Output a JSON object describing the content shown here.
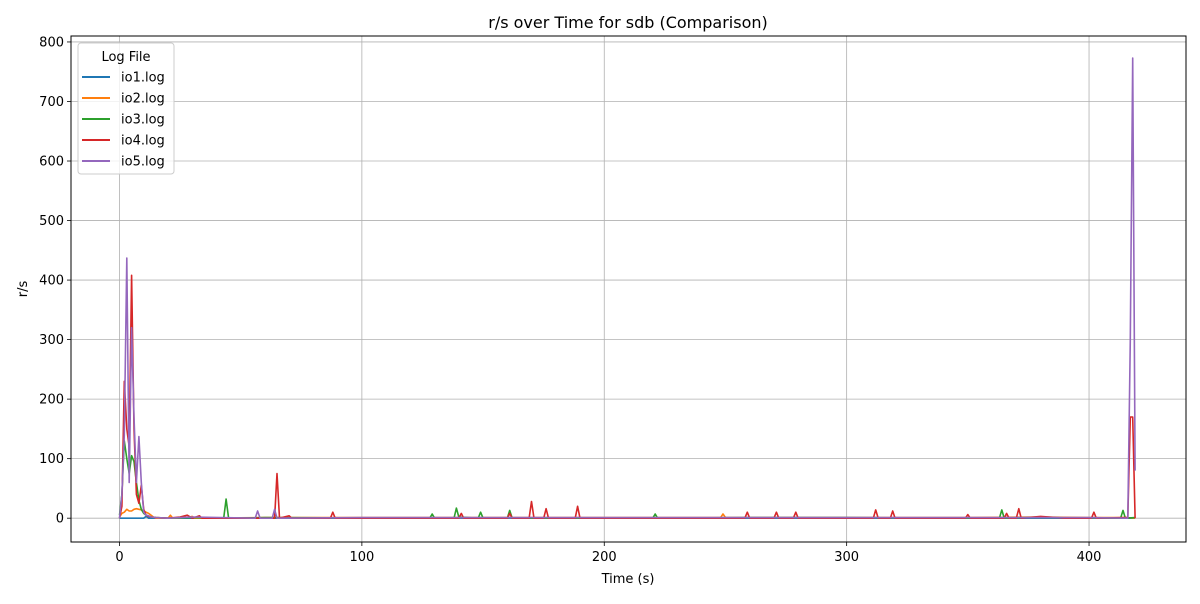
{
  "chart_data": {
    "type": "line",
    "title": "r/s over Time for sdb (Comparison)",
    "xlabel": "Time (s)",
    "ylabel": "r/s",
    "xlim": [
      -20,
      440
    ],
    "ylim": [
      -40,
      810
    ],
    "xticks": [
      0,
      100,
      200,
      300,
      400
    ],
    "yticks": [
      0,
      100,
      200,
      300,
      400,
      500,
      600,
      700,
      800
    ],
    "grid": true,
    "legend": {
      "title": "Log File",
      "placement": "top-left"
    },
    "series": [
      {
        "name": "io1.log",
        "color": "#1f77b4",
        "points": [
          [
            0,
            0
          ],
          [
            5,
            0
          ],
          [
            10,
            0
          ],
          [
            11,
            3
          ],
          [
            12,
            0
          ],
          [
            20,
            0
          ],
          [
            100,
            0
          ],
          [
            200,
            0
          ],
          [
            300,
            0
          ],
          [
            400,
            0
          ],
          [
            419,
            0
          ]
        ]
      },
      {
        "name": "io2.log",
        "color": "#ff7f0e",
        "points": [
          [
            0,
            2
          ],
          [
            1,
            8
          ],
          [
            2,
            10
          ],
          [
            3,
            15
          ],
          [
            4,
            12
          ],
          [
            5,
            12
          ],
          [
            6,
            15
          ],
          [
            7,
            16
          ],
          [
            8,
            15
          ],
          [
            9,
            14
          ],
          [
            10,
            12
          ],
          [
            11,
            10
          ],
          [
            12,
            8
          ],
          [
            13,
            5
          ],
          [
            14,
            2
          ],
          [
            15,
            0
          ],
          [
            20,
            0
          ],
          [
            21,
            5
          ],
          [
            22,
            0
          ],
          [
            28,
            1
          ],
          [
            30,
            3
          ],
          [
            31,
            0
          ],
          [
            60,
            1
          ],
          [
            100,
            1
          ],
          [
            150,
            1
          ],
          [
            200,
            1
          ],
          [
            248,
            1
          ],
          [
            249,
            7
          ],
          [
            250,
            1
          ],
          [
            300,
            1
          ],
          [
            350,
            1
          ],
          [
            380,
            2
          ],
          [
            400,
            1
          ],
          [
            410,
            1
          ],
          [
            415,
            1
          ],
          [
            419,
            0
          ]
        ]
      },
      {
        "name": "io3.log",
        "color": "#2ca02c",
        "points": [
          [
            0,
            5
          ],
          [
            1,
            40
          ],
          [
            2,
            130
          ],
          [
            3,
            100
          ],
          [
            4,
            75
          ],
          [
            5,
            105
          ],
          [
            6,
            95
          ],
          [
            7,
            60
          ],
          [
            8,
            30
          ],
          [
            9,
            15
          ],
          [
            10,
            8
          ],
          [
            11,
            5
          ],
          [
            12,
            3
          ],
          [
            13,
            2
          ],
          [
            15,
            1
          ],
          [
            20,
            0
          ],
          [
            30,
            1
          ],
          [
            43,
            0
          ],
          [
            44,
            32
          ],
          [
            45,
            0
          ],
          [
            60,
            1
          ],
          [
            128,
            0
          ],
          [
            129,
            7
          ],
          [
            130,
            0
          ],
          [
            138,
            0
          ],
          [
            139,
            17
          ],
          [
            140,
            2
          ],
          [
            148,
            0
          ],
          [
            149,
            10
          ],
          [
            150,
            0
          ],
          [
            160,
            0
          ],
          [
            161,
            13
          ],
          [
            162,
            0
          ],
          [
            220,
            0
          ],
          [
            221,
            7
          ],
          [
            222,
            0
          ],
          [
            260,
            1
          ],
          [
            300,
            1
          ],
          [
            363,
            0
          ],
          [
            364,
            14
          ],
          [
            365,
            0
          ],
          [
            375,
            1
          ],
          [
            413,
            0
          ],
          [
            414,
            13
          ],
          [
            415,
            0
          ],
          [
            419,
            1
          ]
        ]
      },
      {
        "name": "io4.log",
        "color": "#d62728",
        "points": [
          [
            0,
            0
          ],
          [
            1,
            20
          ],
          [
            2,
            230
          ],
          [
            3,
            150
          ],
          [
            4,
            120
          ],
          [
            5,
            408
          ],
          [
            6,
            150
          ],
          [
            7,
            40
          ],
          [
            8,
            25
          ],
          [
            9,
            55
          ],
          [
            10,
            15
          ],
          [
            11,
            5
          ],
          [
            12,
            3
          ],
          [
            13,
            2
          ],
          [
            15,
            1
          ],
          [
            20,
            0
          ],
          [
            25,
            2
          ],
          [
            28,
            5
          ],
          [
            30,
            0
          ],
          [
            33,
            4
          ],
          [
            34,
            0
          ],
          [
            64,
            0
          ],
          [
            65,
            75
          ],
          [
            66,
            0
          ],
          [
            70,
            4
          ],
          [
            71,
            0
          ],
          [
            87,
            0
          ],
          [
            88,
            10
          ],
          [
            89,
            0
          ],
          [
            140,
            0
          ],
          [
            141,
            8
          ],
          [
            142,
            0
          ],
          [
            160,
            0
          ],
          [
            161,
            8
          ],
          [
            162,
            0
          ],
          [
            169,
            0
          ],
          [
            170,
            28
          ],
          [
            171,
            0
          ],
          [
            175,
            0
          ],
          [
            176,
            16
          ],
          [
            177,
            0
          ],
          [
            188,
            0
          ],
          [
            189,
            20
          ],
          [
            190,
            0
          ],
          [
            258,
            0
          ],
          [
            259,
            10
          ],
          [
            260,
            0
          ],
          [
            270,
            0
          ],
          [
            271,
            10
          ],
          [
            272,
            0
          ],
          [
            278,
            0
          ],
          [
            279,
            10
          ],
          [
            280,
            0
          ],
          [
            311,
            0
          ],
          [
            312,
            14
          ],
          [
            313,
            0
          ],
          [
            318,
            0
          ],
          [
            319,
            12
          ],
          [
            320,
            0
          ],
          [
            349,
            0
          ],
          [
            350,
            6
          ],
          [
            351,
            0
          ],
          [
            365,
            0
          ],
          [
            366,
            8
          ],
          [
            367,
            0
          ],
          [
            370,
            0
          ],
          [
            371,
            16
          ],
          [
            372,
            0
          ],
          [
            380,
            3
          ],
          [
            390,
            0
          ],
          [
            401,
            0
          ],
          [
            402,
            10
          ],
          [
            403,
            0
          ],
          [
            415,
            1
          ],
          [
            416,
            1
          ],
          [
            417,
            170
          ],
          [
            418,
            170
          ],
          [
            419,
            0
          ]
        ]
      },
      {
        "name": "io5.log",
        "color": "#9467bd",
        "points": [
          [
            0,
            0
          ],
          [
            1,
            40
          ],
          [
            2,
            140
          ],
          [
            3,
            437
          ],
          [
            4,
            60
          ],
          [
            5,
            320
          ],
          [
            6,
            170
          ],
          [
            7,
            60
          ],
          [
            8,
            137
          ],
          [
            9,
            60
          ],
          [
            10,
            10
          ],
          [
            11,
            5
          ],
          [
            12,
            4
          ],
          [
            13,
            2
          ],
          [
            15,
            1
          ],
          [
            20,
            0
          ],
          [
            30,
            2
          ],
          [
            56,
            0
          ],
          [
            57,
            12
          ],
          [
            58,
            0
          ],
          [
            63,
            0
          ],
          [
            64,
            15
          ],
          [
            65,
            0
          ],
          [
            100,
            1
          ],
          [
            200,
            1
          ],
          [
            300,
            1
          ],
          [
            355,
            1
          ],
          [
            400,
            1
          ],
          [
            416,
            0
          ],
          [
            417,
            300
          ],
          [
            418,
            773
          ],
          [
            419,
            80
          ]
        ]
      }
    ]
  }
}
